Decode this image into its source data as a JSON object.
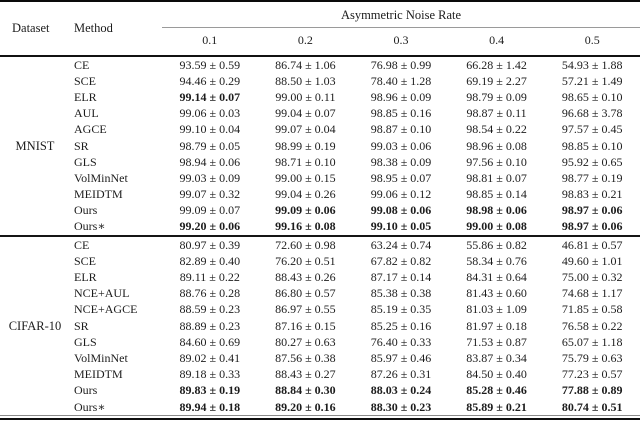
{
  "table": {
    "columns": {
      "dataset_label": "Dataset",
      "method_label": "Method",
      "group_label": "Asymmetric Noise Rate",
      "noise_rates": [
        "0.1",
        "0.2",
        "0.3",
        "0.4",
        "0.5"
      ]
    },
    "sections": [
      {
        "dataset": "MNIST",
        "rows": [
          {
            "method": "CE",
            "values": [
              "93.59 ± 0.59",
              "86.74 ± 1.06",
              "76.98 ± 0.99",
              "66.28 ± 1.42",
              "54.93 ± 1.88"
            ],
            "bold": [
              false,
              false,
              false,
              false,
              false
            ]
          },
          {
            "method": "SCE",
            "values": [
              "94.46 ± 0.29",
              "88.50 ± 1.03",
              "78.40 ± 1.28",
              "69.19 ± 2.27",
              "57.21 ± 1.49"
            ],
            "bold": [
              false,
              false,
              false,
              false,
              false
            ]
          },
          {
            "method": "ELR",
            "values": [
              "99.14 ± 0.07",
              "99.00 ± 0.11",
              "98.96 ± 0.09",
              "98.79 ± 0.09",
              "98.65 ± 0.10"
            ],
            "bold": [
              true,
              false,
              false,
              false,
              false
            ]
          },
          {
            "method": "AUL",
            "values": [
              "99.06 ± 0.03",
              "99.04 ± 0.07",
              "98.85 ± 0.16",
              "98.87 ± 0.11",
              "96.68 ± 3.78"
            ],
            "bold": [
              false,
              false,
              false,
              false,
              false
            ]
          },
          {
            "method": "AGCE",
            "values": [
              "99.10 ± 0.04",
              "99.07 ± 0.04",
              "98.87 ± 0.10",
              "98.54 ± 0.22",
              "97.57 ± 0.45"
            ],
            "bold": [
              false,
              false,
              false,
              false,
              false
            ]
          },
          {
            "method": "SR",
            "values": [
              "98.79 ± 0.05",
              "98.99 ± 0.19",
              "99.03 ± 0.06",
              "98.96 ± 0.08",
              "98.85 ± 0.10"
            ],
            "bold": [
              false,
              false,
              false,
              false,
              false
            ]
          },
          {
            "method": "GLS",
            "values": [
              "98.94 ± 0.06",
              "98.71 ± 0.10",
              "98.38 ± 0.09",
              "97.56 ± 0.10",
              "95.92 ± 0.65"
            ],
            "bold": [
              false,
              false,
              false,
              false,
              false
            ]
          },
          {
            "method": "VolMinNet",
            "values": [
              "99.03 ± 0.09",
              "99.00 ± 0.15",
              "98.95 ± 0.07",
              "98.81 ± 0.07",
              "98.77 ± 0.19"
            ],
            "bold": [
              false,
              false,
              false,
              false,
              false
            ]
          },
          {
            "method": "MEIDTM",
            "values": [
              "99.07 ± 0.32",
              "99.04 ± 0.26",
              "99.06 ± 0.12",
              "98.85 ± 0.14",
              "98.83 ± 0.21"
            ],
            "bold": [
              false,
              false,
              false,
              false,
              false
            ]
          },
          {
            "method": "Ours",
            "values": [
              "99.09 ± 0.07",
              "99.09 ± 0.06",
              "99.08 ± 0.06",
              "98.98 ± 0.06",
              "98.97 ± 0.06"
            ],
            "bold": [
              false,
              true,
              true,
              true,
              true
            ]
          },
          {
            "method": "Ours∗",
            "values": [
              "99.20 ± 0.06",
              "99.16 ± 0.08",
              "99.10 ± 0.05",
              "99.00 ± 0.08",
              "98.97 ± 0.06"
            ],
            "bold": [
              true,
              true,
              true,
              true,
              true
            ]
          }
        ]
      },
      {
        "dataset": "CIFAR-10",
        "rows": [
          {
            "method": "CE",
            "values": [
              "80.97 ± 0.39",
              "72.60 ± 0.98",
              "63.24 ± 0.74",
              "55.86 ± 0.82",
              "46.81 ± 0.57"
            ],
            "bold": [
              false,
              false,
              false,
              false,
              false
            ]
          },
          {
            "method": "SCE",
            "values": [
              "82.89 ± 0.40",
              "76.20 ± 0.51",
              "67.82 ± 0.82",
              "58.34 ± 0.76",
              "49.60 ± 1.01"
            ],
            "bold": [
              false,
              false,
              false,
              false,
              false
            ]
          },
          {
            "method": "ELR",
            "values": [
              "89.11 ± 0.22",
              "88.43 ± 0.26",
              "87.17 ± 0.14",
              "84.31 ± 0.64",
              "75.00 ± 0.32"
            ],
            "bold": [
              false,
              false,
              false,
              false,
              false
            ]
          },
          {
            "method": "NCE+AUL",
            "values": [
              "88.76 ± 0.28",
              "86.80 ± 0.57",
              "85.38 ± 0.38",
              "81.43 ± 0.60",
              "74.68 ± 1.17"
            ],
            "bold": [
              false,
              false,
              false,
              false,
              false
            ]
          },
          {
            "method": "NCE+AGCE",
            "values": [
              "88.59 ± 0.23",
              "86.97 ± 0.55",
              "85.19 ± 0.35",
              "81.03 ± 1.09",
              "71.85 ± 0.58"
            ],
            "bold": [
              false,
              false,
              false,
              false,
              false
            ]
          },
          {
            "method": "SR",
            "values": [
              "88.89 ± 0.23",
              "87.16 ± 0.15",
              "85.25 ± 0.16",
              "81.97 ± 0.18",
              "76.58 ± 0.22"
            ],
            "bold": [
              false,
              false,
              false,
              false,
              false
            ]
          },
          {
            "method": "GLS",
            "values": [
              "84.60 ± 0.69",
              "80.27 ± 0.63",
              "76.40 ± 0.33",
              "71.53 ± 0.87",
              "65.07 ± 1.18"
            ],
            "bold": [
              false,
              false,
              false,
              false,
              false
            ]
          },
          {
            "method": "VolMinNet",
            "values": [
              "89.02 ± 0.41",
              "87.56 ± 0.38",
              "85.97 ± 0.46",
              "83.87 ± 0.34",
              "75.79 ± 0.63"
            ],
            "bold": [
              false,
              false,
              false,
              false,
              false
            ]
          },
          {
            "method": "MEIDTM",
            "values": [
              "89.18 ± 0.33",
              "88.43 ± 0.27",
              "87.26 ± 0.31",
              "84.50 ± 0.40",
              "77.23 ± 0.57"
            ],
            "bold": [
              false,
              false,
              false,
              false,
              false
            ]
          },
          {
            "method": "Ours",
            "values": [
              "89.83 ± 0.19",
              "88.84 ± 0.30",
              "88.03 ± 0.24",
              "85.28 ± 0.46",
              "77.88 ± 0.89"
            ],
            "bold": [
              true,
              true,
              true,
              true,
              true
            ]
          },
          {
            "method": "Ours∗",
            "values": [
              "89.94 ± 0.18",
              "89.20 ± 0.16",
              "88.30 ± 0.23",
              "85.89 ± 0.21",
              "80.74 ± 0.51"
            ],
            "bold": [
              true,
              true,
              true,
              true,
              true
            ]
          }
        ]
      }
    ]
  }
}
